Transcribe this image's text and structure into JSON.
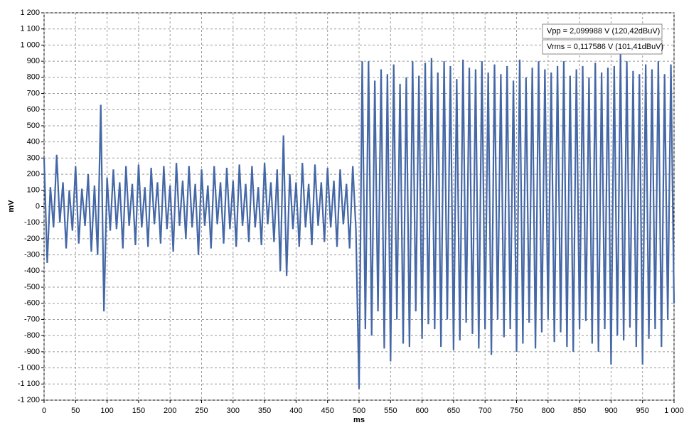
{
  "chart_data": {
    "type": "line",
    "xlabel": "ms",
    "ylabel": "mV",
    "color": "#4467a6",
    "grid": true,
    "annotations": [
      "Vpp  = 2,099988 V (120,42dBuV)",
      "Vrms = 0,117586 V (101,41dBuV)"
    ],
    "xlim": [
      0,
      1000
    ],
    "ylim": [
      -1200,
      1200
    ],
    "xticks": [
      0,
      50,
      100,
      150,
      200,
      250,
      300,
      350,
      400,
      450,
      500,
      550,
      600,
      650,
      700,
      750,
      800,
      850,
      900,
      950,
      {
        "value": 1000,
        "label": "1 000"
      }
    ],
    "yticks": [
      {
        "value": -1200,
        "label": "-1 200"
      },
      {
        "value": -1100,
        "label": "-1 100"
      },
      {
        "value": -1000,
        "label": "-1 000"
      },
      -900,
      -800,
      -700,
      -600,
      -500,
      -400,
      -300,
      -200,
      -100,
      0,
      100,
      200,
      300,
      400,
      500,
      600,
      700,
      800,
      900,
      {
        "value": 1000,
        "label": "1 000"
      },
      {
        "value": 1100,
        "label": "1 100"
      },
      {
        "value": 1200,
        "label": "1 200"
      }
    ],
    "x": [
      0,
      5,
      10,
      15,
      20,
      25,
      30,
      35,
      40,
      45,
      50,
      55,
      60,
      65,
      70,
      75,
      80,
      85,
      90,
      95,
      100,
      105,
      110,
      115,
      120,
      125,
      130,
      135,
      140,
      145,
      150,
      155,
      160,
      165,
      170,
      175,
      180,
      185,
      190,
      195,
      200,
      205,
      210,
      215,
      220,
      225,
      230,
      235,
      240,
      245,
      250,
      255,
      260,
      265,
      270,
      275,
      280,
      285,
      290,
      295,
      300,
      305,
      310,
      315,
      320,
      325,
      330,
      335,
      340,
      345,
      350,
      355,
      360,
      365,
      370,
      375,
      380,
      385,
      390,
      395,
      400,
      405,
      410,
      415,
      420,
      425,
      430,
      435,
      440,
      445,
      450,
      455,
      460,
      465,
      470,
      475,
      480,
      485,
      490,
      495,
      500,
      505,
      510,
      515,
      520,
      525,
      530,
      535,
      540,
      545,
      550,
      555,
      560,
      565,
      570,
      575,
      580,
      585,
      590,
      595,
      600,
      605,
      610,
      615,
      620,
      625,
      630,
      635,
      640,
      645,
      650,
      655,
      660,
      665,
      670,
      675,
      680,
      685,
      690,
      695,
      700,
      705,
      710,
      715,
      720,
      725,
      730,
      735,
      740,
      745,
      750,
      755,
      760,
      765,
      770,
      775,
      780,
      785,
      790,
      795,
      800,
      805,
      810,
      815,
      820,
      825,
      830,
      835,
      840,
      845,
      850,
      855,
      860,
      865,
      870,
      875,
      880,
      885,
      890,
      895,
      900,
      905,
      910,
      915,
      920,
      925,
      930,
      935,
      940,
      945,
      950,
      955,
      960,
      965,
      970,
      975,
      980,
      985,
      990,
      995,
      1000
    ],
    "values": [
      300,
      -350,
      120,
      -130,
      320,
      -100,
      150,
      -260,
      100,
      -150,
      250,
      -230,
      110,
      -120,
      200,
      -280,
      130,
      -300,
      630,
      -650,
      180,
      -150,
      230,
      -140,
      150,
      -260,
      250,
      -120,
      140,
      -240,
      260,
      -130,
      120,
      -250,
      240,
      -110,
      150,
      -230,
      250,
      -140,
      130,
      -280,
      270,
      -120,
      160,
      -200,
      250,
      -130,
      140,
      -300,
      230,
      -120,
      130,
      -260,
      250,
      -110,
      150,
      -230,
      240,
      -140,
      160,
      -250,
      260,
      -120,
      140,
      -220,
      250,
      -130,
      120,
      -240,
      270,
      -110,
      150,
      -220,
      230,
      -400,
      440,
      -430,
      200,
      -140,
      150,
      -250,
      270,
      -130,
      140,
      -240,
      260,
      -120,
      150,
      -220,
      240,
      -130,
      160,
      -250,
      230,
      -110,
      140,
      -260,
      250,
      -140,
      -1130,
      900,
      -760,
      900,
      -800,
      780,
      -650,
      850,
      -880,
      820,
      -960,
      880,
      -700,
      760,
      -850,
      800,
      -870,
      900,
      -650,
      810,
      -820,
      890,
      -730,
      920,
      -760,
      830,
      -870,
      900,
      -700,
      870,
      -890,
      790,
      -830,
      910,
      -720,
      860,
      -790,
      850,
      -880,
      900,
      -760,
      830,
      -920,
      880,
      -700,
      820,
      -810,
      870,
      -760,
      780,
      -900,
      910,
      -850,
      800,
      -720,
      860,
      -880,
      900,
      -780,
      850,
      -700,
      830,
      -840,
      870,
      -780,
      900,
      -870,
      810,
      -900,
      850,
      -760,
      870,
      -710,
      800,
      -850,
      890,
      -900,
      830,
      -760,
      860,
      -980,
      870,
      -800,
      950,
      -830,
      900,
      -750,
      840,
      -870,
      820,
      -980,
      880,
      -820,
      850,
      -760,
      900,
      -870,
      820,
      -700,
      880,
      -600
    ]
  }
}
